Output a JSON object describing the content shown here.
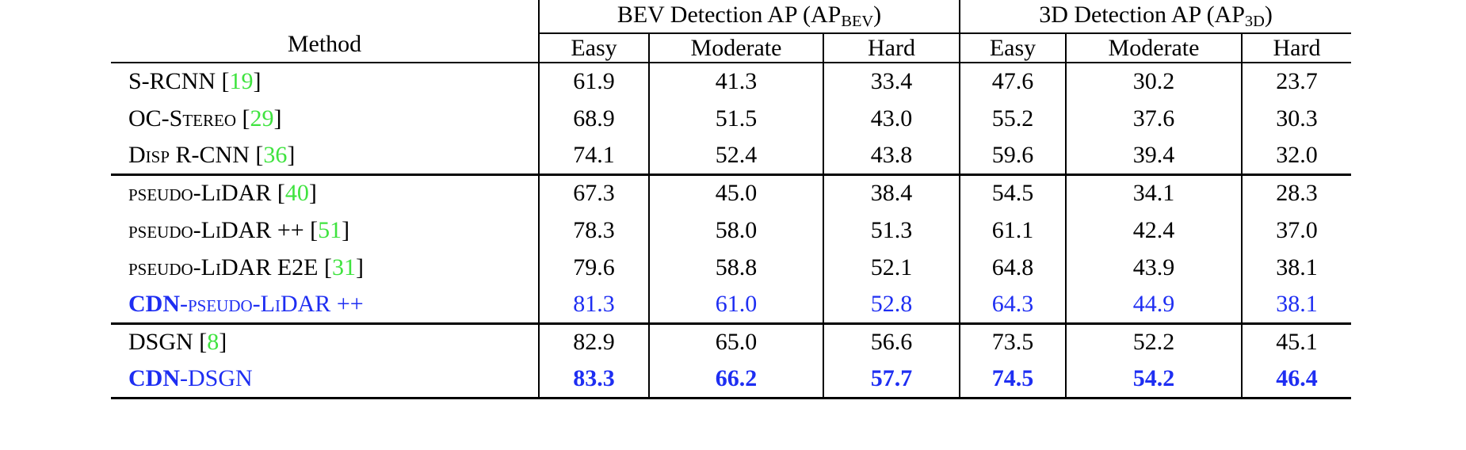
{
  "colors": {
    "citation_green": "#3fe33f",
    "method_blue": "#1e2ef2",
    "rule_black": "#000000"
  },
  "table": {
    "method_header": "Method",
    "group_headers": [
      {
        "pre": "BEV Detection AP (AP",
        "sub": "BEV",
        "post": ")"
      },
      {
        "pre": "3D Detection AP (AP",
        "sub": "3D",
        "post": ")"
      }
    ],
    "sub_headers": [
      "Easy",
      "Moderate",
      "Hard",
      "Easy",
      "Moderate",
      "Hard"
    ],
    "rows": [
      {
        "method": [
          {
            "t": "S-RCNN",
            "b": false
          }
        ],
        "cite": "19",
        "values": [
          "61.9",
          "41.3",
          "33.4",
          "47.6",
          "30.2",
          "23.7"
        ],
        "style": "normal",
        "sep_after": false
      },
      {
        "method": [
          {
            "t": "OC-Stereo",
            "b": false
          }
        ],
        "cite": "29",
        "values": [
          "68.9",
          "51.5",
          "43.0",
          "55.2",
          "37.6",
          "30.3"
        ],
        "style": "normal",
        "sep_after": false
      },
      {
        "method": [
          {
            "t": "Disp R-CNN",
            "b": false
          }
        ],
        "cite": "36",
        "values": [
          "74.1",
          "52.4",
          "43.8",
          "59.6",
          "39.4",
          "32.0"
        ],
        "style": "normal",
        "sep_after": true
      },
      {
        "method": [
          {
            "t": "pseudo-LiDAR",
            "b": false
          }
        ],
        "cite": "40",
        "values": [
          "67.3",
          "45.0",
          "38.4",
          "54.5",
          "34.1",
          "28.3"
        ],
        "style": "normal",
        "sep_after": false
      },
      {
        "method": [
          {
            "t": "pseudo-LiDAR ++",
            "b": false
          }
        ],
        "cite": "51",
        "values": [
          "78.3",
          "58.0",
          "51.3",
          "61.1",
          "42.4",
          "37.0"
        ],
        "style": "normal",
        "sep_after": false
      },
      {
        "method": [
          {
            "t": "pseudo-LiDAR E2E",
            "b": false
          }
        ],
        "cite": "31",
        "values": [
          "79.6",
          "58.8",
          "52.1",
          "64.8",
          "43.9",
          "38.1"
        ],
        "style": "normal",
        "sep_after": false
      },
      {
        "method": [
          {
            "t": "CDN",
            "b": true
          },
          {
            "t": "-pseudo-LiDAR ++",
            "b": false
          }
        ],
        "cite": null,
        "values": [
          "81.3",
          "61.0",
          "52.8",
          "64.3",
          "44.9",
          "38.1"
        ],
        "style": "blue",
        "sep_after": true
      },
      {
        "method": [
          {
            "t": "DSGN",
            "b": false
          }
        ],
        "cite": "8",
        "values": [
          "82.9",
          "65.0",
          "56.6",
          "73.5",
          "52.2",
          "45.1"
        ],
        "style": "normal",
        "sep_after": false
      },
      {
        "method": [
          {
            "t": "CDN",
            "b": true
          },
          {
            "t": "-DSGN",
            "b": false
          }
        ],
        "cite": null,
        "values": [
          "83.3",
          "66.2",
          "57.7",
          "74.5",
          "54.2",
          "46.4"
        ],
        "style": "blue-bold",
        "sep_after": false
      }
    ]
  }
}
